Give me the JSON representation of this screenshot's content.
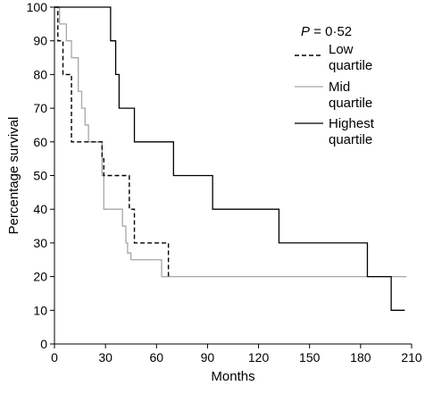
{
  "chart_data": {
    "type": "line",
    "step": true,
    "title": "",
    "xlabel": "Months",
    "ylabel": "Percentage survival",
    "xlim": [
      0,
      210
    ],
    "ylim": [
      0,
      100
    ],
    "xticks": [
      0,
      30,
      60,
      90,
      120,
      150,
      180,
      210
    ],
    "yticks": [
      0,
      10,
      20,
      30,
      40,
      50,
      60,
      70,
      80,
      90,
      100
    ],
    "annotation": {
      "p_symbol": "P",
      "p_value": " = 0·52"
    },
    "legend_position": "top-right",
    "series": [
      {
        "name": "Low quartile",
        "name_lines": [
          "Low",
          "quartile"
        ],
        "style": "dashed",
        "color": "#000000",
        "x": [
          0,
          2,
          5,
          10,
          28,
          29,
          44,
          47,
          67
        ],
        "y": [
          100,
          90,
          80,
          60,
          55,
          50,
          40,
          30,
          20
        ]
      },
      {
        "name": "Mid quartile",
        "name_lines": [
          "Mid",
          "quartile"
        ],
        "style": "solid",
        "color": "#a6a6a6",
        "x": [
          0,
          3,
          7,
          10,
          14,
          16,
          18,
          20,
          28,
          29,
          40,
          42,
          43,
          45,
          63,
          207
        ],
        "y": [
          100,
          95,
          90,
          85,
          75,
          70,
          65,
          60,
          50,
          40,
          35,
          30,
          27,
          25,
          20,
          20
        ]
      },
      {
        "name": "Highest quartile",
        "name_lines": [
          "Highest",
          "quartile"
        ],
        "style": "solid",
        "color": "#000000",
        "x": [
          0,
          33,
          36,
          38,
          47,
          70,
          93,
          132,
          184,
          198,
          206
        ],
        "y": [
          100,
          90,
          80,
          70,
          60,
          50,
          40,
          30,
          20,
          10,
          10
        ]
      }
    ]
  }
}
